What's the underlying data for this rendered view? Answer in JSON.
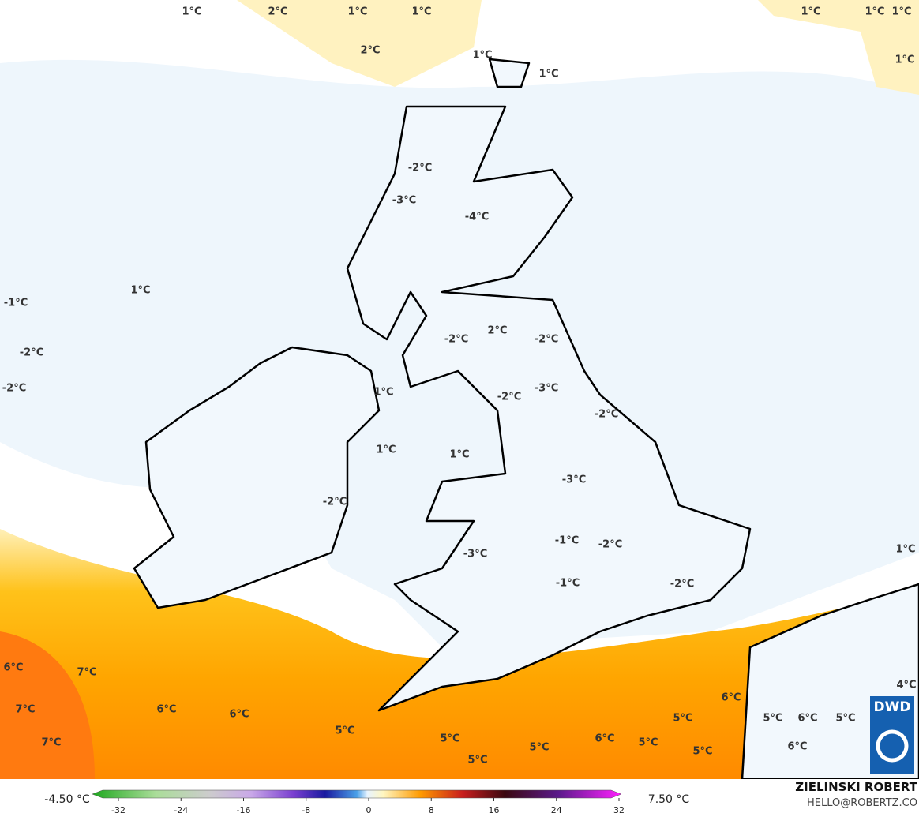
{
  "map": {
    "labels": [
      "1°C",
      "2°C",
      "1°C",
      "1°C",
      "1°C",
      "1°C",
      "1°C",
      "2°C",
      "1°C",
      "1°C",
      "1°C",
      "-2°C",
      "-3°C",
      "-4°C",
      "1°C",
      "-1°C",
      "-2°C",
      "-2°C",
      "-2°C",
      "2°C",
      "-2°C",
      "1°C",
      "-3°C",
      "-2°C",
      "-2°C",
      "1°C",
      "1°C",
      "-3°C",
      "-2°C",
      "-1°C",
      "-2°C",
      "-3°C",
      "1°C",
      "-1°C",
      "-2°C",
      "6°C",
      "7°C",
      "4°C",
      "6°C",
      "7°C",
      "6°C",
      "6°C",
      "5°C",
      "5°C",
      "6°C",
      "5°C",
      "5°C",
      "5°C",
      "6°C",
      "5°C",
      "5°C",
      "5°C",
      "6°C",
      "7°C",
      "5°C"
    ],
    "logo": "DWD"
  },
  "colorbar": {
    "min_label": "-4.50 °C",
    "max_label": "7.50 °C",
    "ticks": [
      -32,
      -24,
      -16,
      -8,
      0,
      8,
      16,
      24,
      32
    ],
    "lim": [
      -32,
      32
    ]
  },
  "credit": {
    "name": "ZIELINSKI ROBERT",
    "contact": "HELLO@ROBERTZ.CO"
  }
}
